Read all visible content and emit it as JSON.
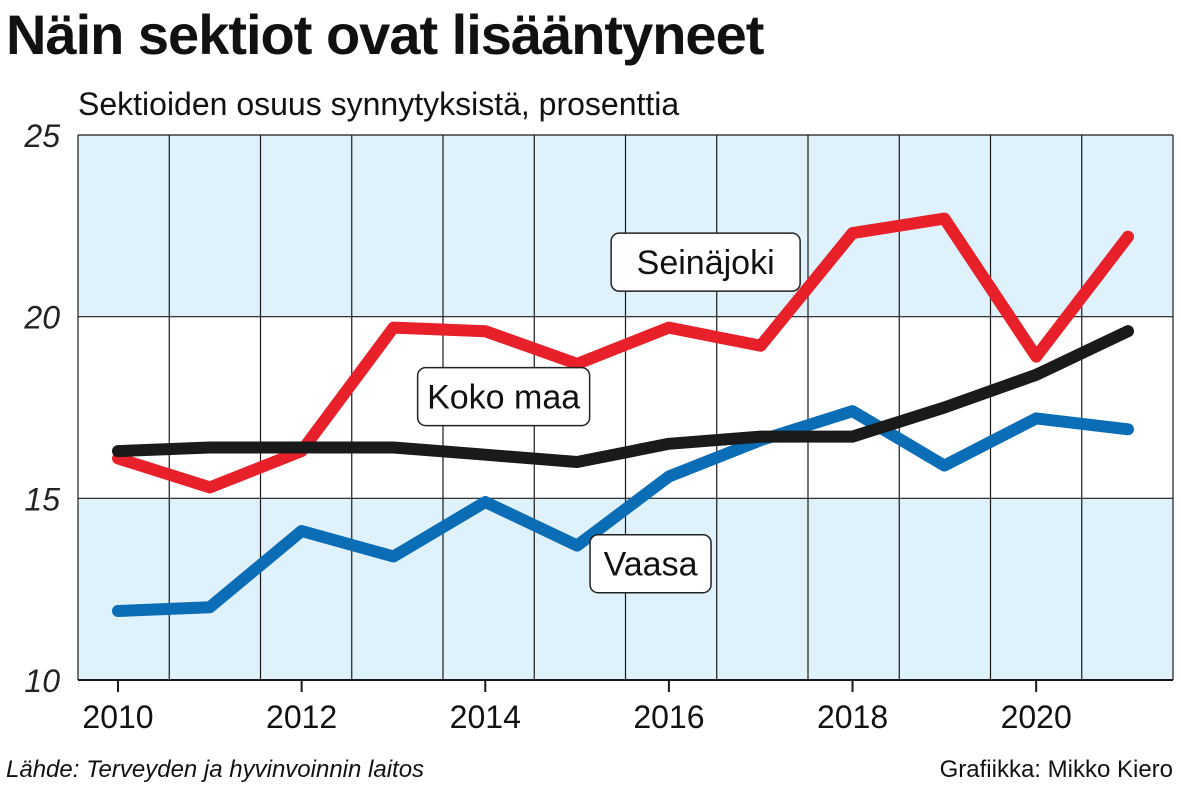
{
  "title": "Näin sektiot ovat lisääntyneet",
  "subtitle": "Sektioiden osuus synnytyksistä, prosenttia",
  "source": "Lähde: Terveyden ja hyvinvoinnin laitos",
  "credit": "Grafiikka: Mikko Kiero",
  "colors": {
    "plot_band": "#dff1fb",
    "grid": "#1a1a1a",
    "seinajoki": "#e8202a",
    "koko_maa": "#1a1a1a",
    "vaasa": "#0a6db5"
  },
  "chart_data": {
    "type": "line",
    "title": "Näin sektiot ovat lisääntyneet",
    "xlabel": "",
    "ylabel": "Sektioiden osuus synnytyksistä, prosenttia",
    "xlim": [
      2010,
      2021
    ],
    "ylim": [
      10,
      25
    ],
    "x_ticks": [
      2010,
      2012,
      2014,
      2016,
      2018,
      2020
    ],
    "x_tick_labels": [
      "2010",
      "2012",
      "2014",
      "2016",
      "2018",
      "2020"
    ],
    "y_ticks": [
      10,
      15,
      20,
      25
    ],
    "y_tick_labels": [
      "10",
      "15",
      "20",
      "25"
    ],
    "grid": true,
    "x": [
      2010,
      2011,
      2012,
      2013,
      2014,
      2015,
      2016,
      2017,
      2018,
      2019,
      2020,
      2021
    ],
    "series": [
      {
        "name": "Seinäjoki",
        "color": "#e8202a",
        "values": [
          16.1,
          15.3,
          16.3,
          19.7,
          19.6,
          18.7,
          19.7,
          19.2,
          22.3,
          22.7,
          18.9,
          22.2
        ]
      },
      {
        "name": "Koko maa",
        "color": "#1a1a1a",
        "values": [
          16.3,
          16.4,
          16.4,
          16.4,
          16.2,
          16.0,
          16.5,
          16.7,
          16.7,
          17.5,
          18.4,
          19.6
        ]
      },
      {
        "name": "Vaasa",
        "color": "#0a6db5",
        "values": [
          11.9,
          12.0,
          14.1,
          13.4,
          14.9,
          13.7,
          15.6,
          16.6,
          17.4,
          15.9,
          17.2,
          16.9
        ]
      }
    ]
  }
}
